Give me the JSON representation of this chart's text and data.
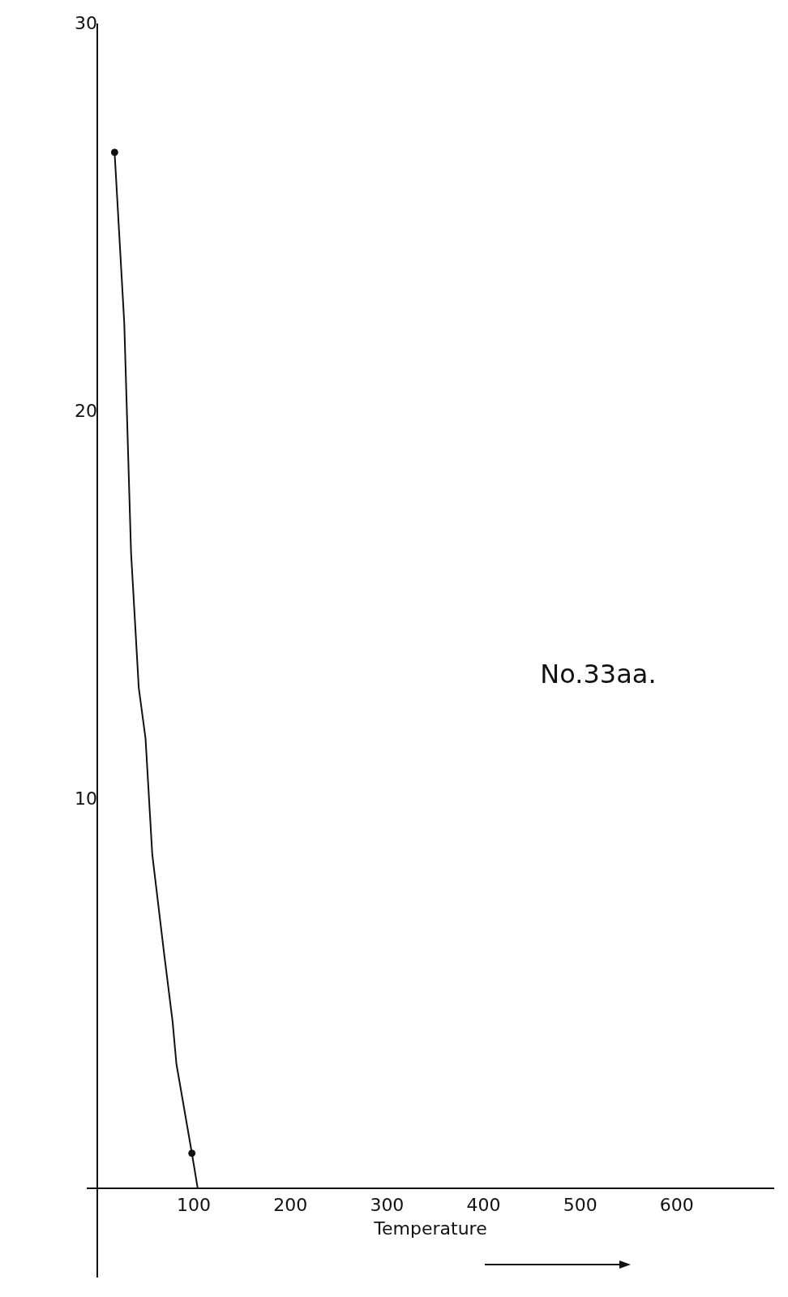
{
  "chart_data": {
    "type": "line",
    "xlabel": "Temperature",
    "annotations": [
      "No.33aa."
    ],
    "xlim": [
      -10,
      700
    ],
    "ylim": [
      -2.3,
      30
    ],
    "xticks": [
      100,
      200,
      300,
      400,
      500,
      600
    ],
    "yticks": [
      10,
      20,
      30
    ],
    "grid": false,
    "legend": false,
    "series": [
      {
        "color": "#111111",
        "marker": "none",
        "x": [
          18,
          28,
          35,
          43,
          50,
          57,
          69,
          78,
          82,
          98,
          104
        ],
        "values": [
          26.7,
          22.3,
          16.4,
          12.9,
          11.6,
          8.6,
          6.1,
          4.3,
          3.2,
          0.9,
          0
        ]
      },
      {
        "type": "scatter",
        "color": "#111111",
        "marker": "circle",
        "x": [
          18,
          98
        ],
        "values": [
          26.7,
          0.9
        ]
      }
    ]
  }
}
